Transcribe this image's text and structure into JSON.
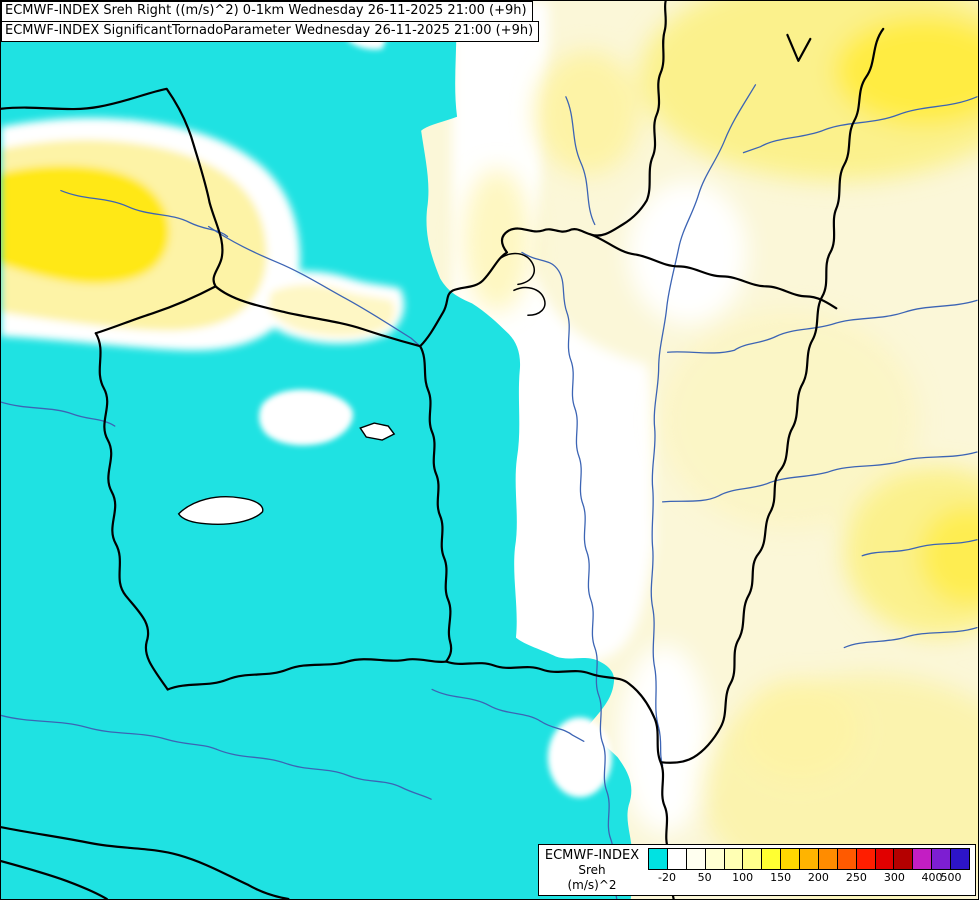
{
  "header": {
    "line1": "ECMWF-INDEX Sreh Right ((m/s)^2) 0-1km Wednesday 26-11-2025 21:00 (+9h)",
    "line2": "ECMWF-INDEX SignificantTornadoParameter Wednesday 26-11-2025 21:00 (+9h)"
  },
  "legend": {
    "title": "ECMWF-INDEX",
    "param": "Sreh",
    "unit": "(m/s)^2",
    "colors": [
      "#00e2e2",
      "#ffffff",
      "#fffff0",
      "#ffffd2",
      "#ffffb4",
      "#ffff8c",
      "#ffff32",
      "#ffd700",
      "#ffb400",
      "#ff8c00",
      "#ff5a00",
      "#ff1e00",
      "#e10000",
      "#b40000",
      "#c31ec3",
      "#7d1ed2",
      "#2d14c8"
    ],
    "ticks": [
      {
        "label": "-20",
        "pos": 5.9
      },
      {
        "label": "50",
        "pos": 17.6
      },
      {
        "label": "100",
        "pos": 29.4
      },
      {
        "label": "150",
        "pos": 41.2
      },
      {
        "label": "200",
        "pos": 52.9
      },
      {
        "label": "250",
        "pos": 64.7
      },
      {
        "label": "300",
        "pos": 76.5
      },
      {
        "label": "400",
        "pos": 88.2
      },
      {
        "label": "500",
        "pos": 94.1
      }
    ]
  },
  "map": {
    "colors": {
      "cyan": "#1fe2e2",
      "cream": "#fbf7d8",
      "white": "#ffffff",
      "yellow": "#ffe818",
      "py": "#fdf3a6",
      "ly": "#fbf18c",
      "y2": "#ffec42",
      "border": "#000000",
      "river": "#3c64b4"
    }
  }
}
